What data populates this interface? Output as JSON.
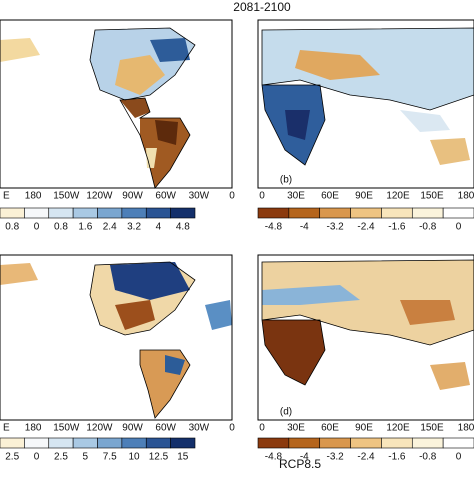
{
  "title": "2081-2100",
  "footer": "RCP8.5",
  "panels": [
    {
      "lon_labels": [
        "E",
        "180",
        "150W",
        "120W",
        "90W",
        "60W",
        "30W",
        "0"
      ],
      "colorbar_labels": [
        "0.8",
        "0",
        "0.8",
        "1.6",
        "2.4",
        "3.2",
        "4",
        "4.8"
      ]
    },
    {
      "label": "(b)",
      "lon_labels": [
        "0",
        "30E",
        "60E",
        "90E",
        "120E",
        "150E",
        "180"
      ],
      "colorbar_labels": [
        "-4.8",
        "-4",
        "-3.2",
        "-2.4",
        "-1.6",
        "-0.8",
        "0"
      ]
    },
    {
      "lon_labels": [
        "E",
        "180",
        "150W",
        "120W",
        "90W",
        "60W",
        "30W",
        "0"
      ],
      "colorbar_labels": [
        "2.5",
        "0",
        "2.5",
        "5",
        "7.5",
        "10",
        "12.5",
        "15"
      ]
    },
    {
      "label": "(d)",
      "lon_labels": [
        "0",
        "30E",
        "60E",
        "90E",
        "120E",
        "150E",
        "180"
      ],
      "colorbar_labels": [
        "-4.8",
        "-4",
        "-3.2",
        "-2.4",
        "-1.6",
        "-0.8",
        "0"
      ]
    }
  ]
}
